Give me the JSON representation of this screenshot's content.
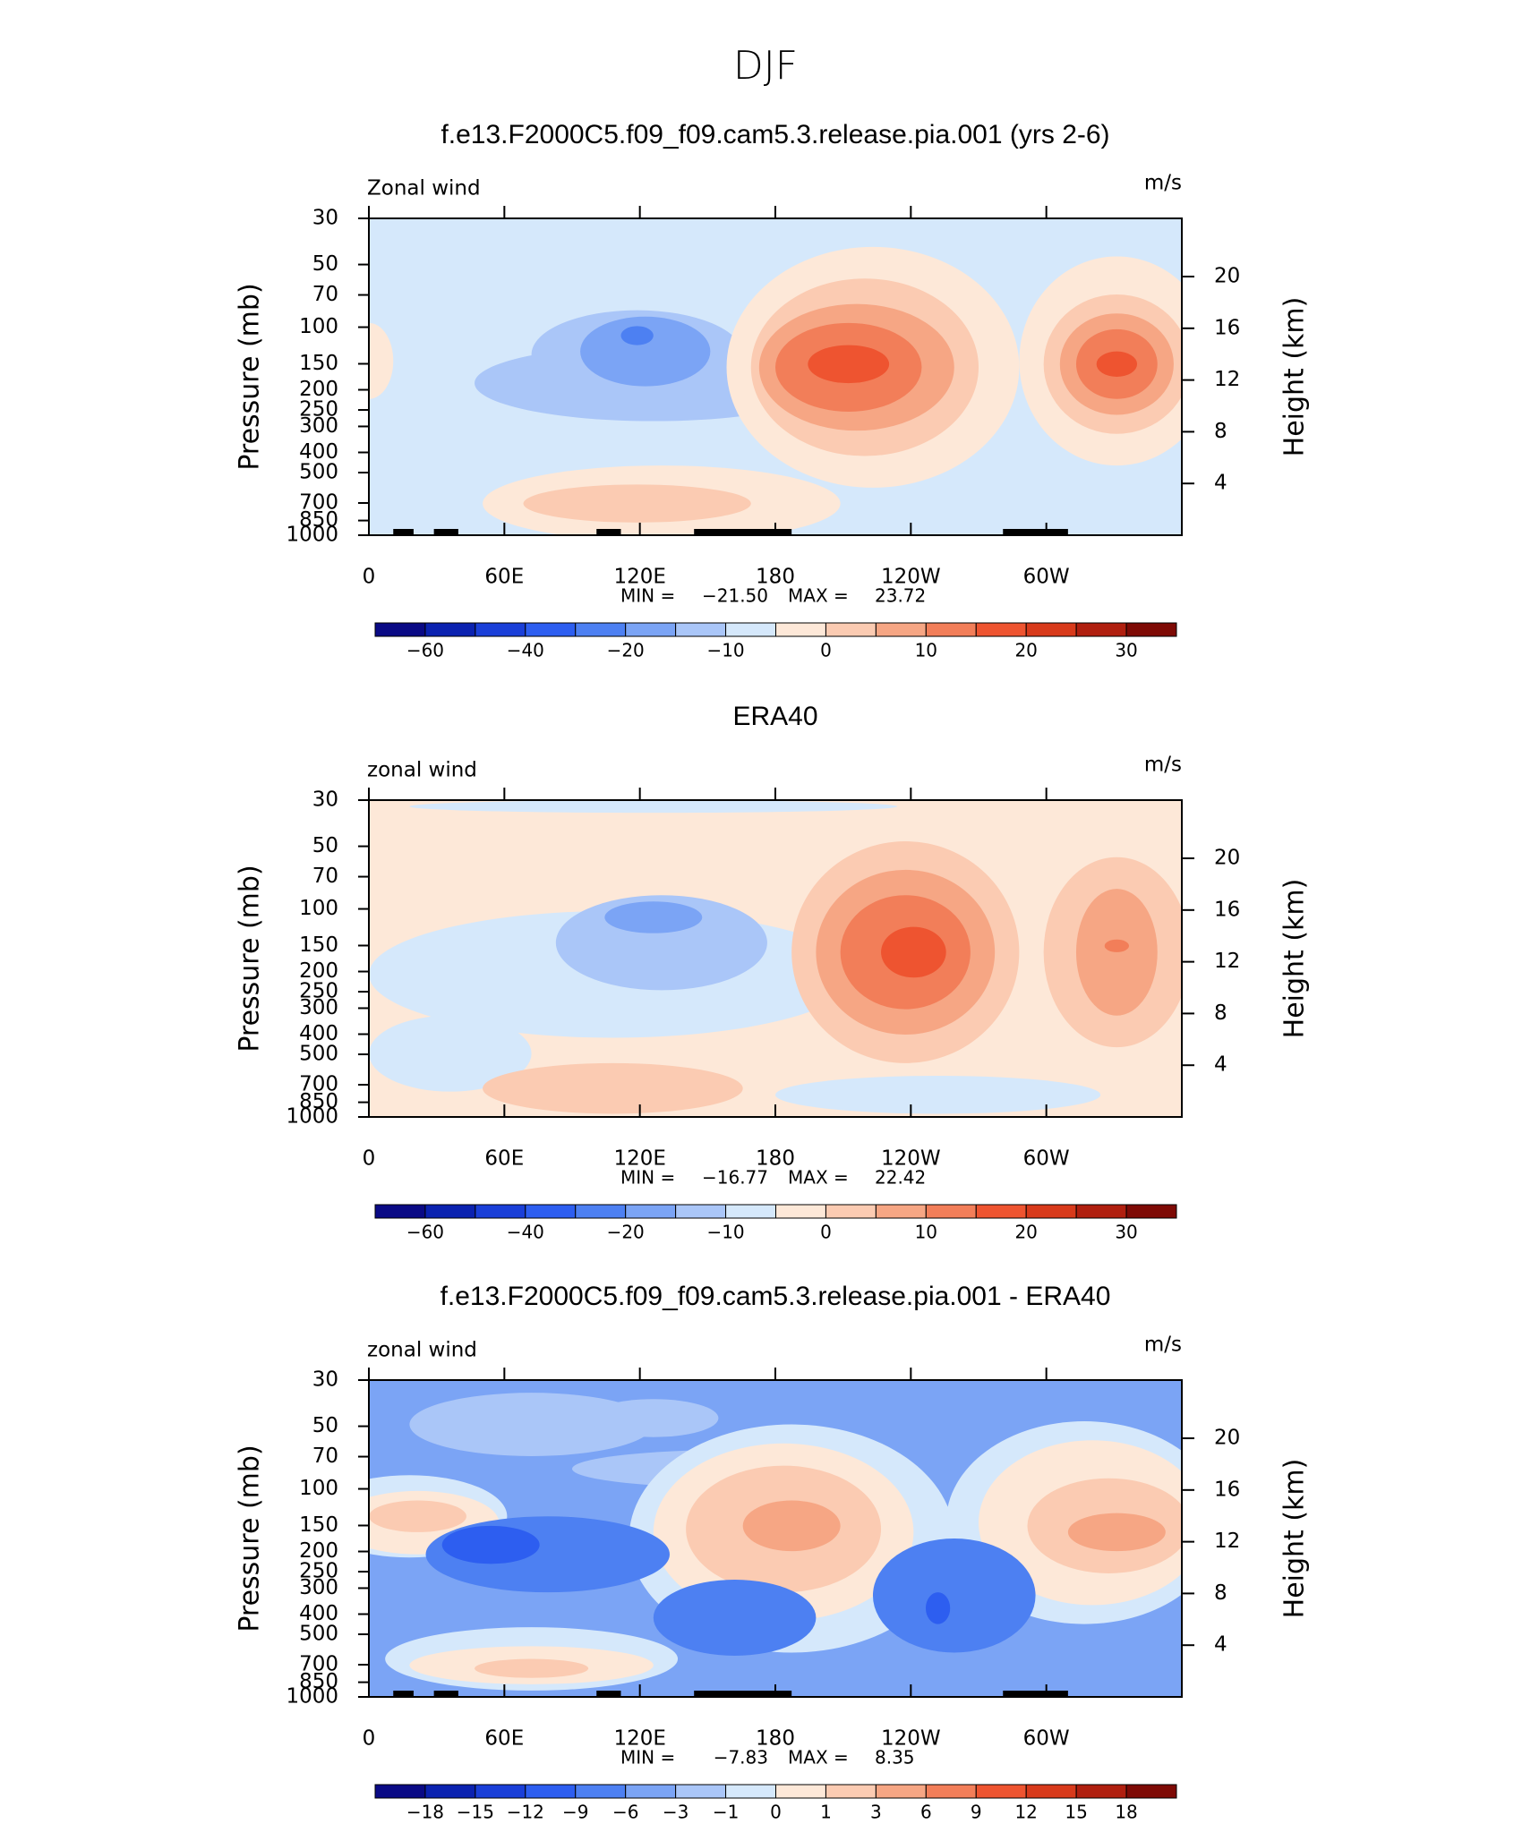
{
  "title": "DJF",
  "chart_data": [
    {
      "type": "contour",
      "title": "f.e13.F2000C5.f09_f09.cam5.3.release.pia.001 (yrs 2-6)",
      "label": "Zonal wind",
      "units": "m/s",
      "ylabel": "Pressure (mb)",
      "y2label": "Height (km)",
      "xlim": [
        0,
        360
      ],
      "xticks": [
        0,
        {
          "value": 60,
          "label": "60E"
        },
        {
          "value": 120,
          "label": "120E"
        },
        180,
        {
          "value": 240,
          "label": "120W"
        },
        {
          "value": 300,
          "label": "60W"
        }
      ],
      "ylim": [
        1000,
        30
      ],
      "yscale": "log",
      "yticks": [
        30,
        50,
        70,
        100,
        150,
        200,
        250,
        300,
        400,
        500,
        700,
        850,
        1000
      ],
      "y2lim": [
        0,
        24.5
      ],
      "y2ticks": [
        4,
        8,
        12,
        16,
        20
      ],
      "stats": {
        "min_label": "MIN =",
        "min": {
          "value": -21.5,
          "label": "−21.50"
        },
        "max_label": "MAX =",
        "max": 23.72
      },
      "colorbar": {
        "colors": [
          "#0a0a85",
          "#0b22b0",
          "#1a3fd8",
          "#2d5ef0",
          "#4d80f2",
          "#7ba4f5",
          "#aac6f8",
          "#d5e8fb",
          "#fde8d8",
          "#fbcbb2",
          "#f6a684",
          "#f27e59",
          "#ee5430",
          "#d83a1b",
          "#b01f0f",
          "#7e0a05"
        ],
        "levels": [
          {
            "value": -60,
            "label": "−60"
          },
          null,
          {
            "value": -40,
            "label": "−40"
          },
          null,
          {
            "value": -20,
            "label": "−20"
          },
          null,
          {
            "value": -10,
            "label": "−10"
          },
          null,
          0,
          null,
          10,
          null,
          20,
          null,
          30
        ]
      }
    },
    {
      "type": "contour",
      "title": "ERA40",
      "label": "zonal wind",
      "units": "m/s",
      "ylabel": "Pressure (mb)",
      "y2label": "Height (km)",
      "xlim": [
        0,
        360
      ],
      "xticks": [
        0,
        {
          "value": 60,
          "label": "60E"
        },
        {
          "value": 120,
          "label": "120E"
        },
        180,
        {
          "value": 240,
          "label": "120W"
        },
        {
          "value": 300,
          "label": "60W"
        }
      ],
      "ylim": [
        1000,
        30
      ],
      "yscale": "log",
      "yticks": [
        30,
        50,
        70,
        100,
        150,
        200,
        250,
        300,
        400,
        500,
        700,
        850,
        1000
      ],
      "y2lim": [
        0,
        24.5
      ],
      "y2ticks": [
        4,
        8,
        12,
        16,
        20
      ],
      "stats": {
        "min_label": "MIN =",
        "min": {
          "value": -16.77,
          "label": "−16.77"
        },
        "max_label": "MAX =",
        "max": 22.42
      },
      "colorbar": {
        "colors": [
          "#0a0a85",
          "#0b22b0",
          "#1a3fd8",
          "#2d5ef0",
          "#4d80f2",
          "#7ba4f5",
          "#aac6f8",
          "#d5e8fb",
          "#fde8d8",
          "#fbcbb2",
          "#f6a684",
          "#f27e59",
          "#ee5430",
          "#d83a1b",
          "#b01f0f",
          "#7e0a05"
        ],
        "levels": [
          {
            "value": -60,
            "label": "−60"
          },
          null,
          {
            "value": -40,
            "label": "−40"
          },
          null,
          {
            "value": -20,
            "label": "−20"
          },
          null,
          {
            "value": -10,
            "label": "−10"
          },
          null,
          0,
          null,
          10,
          null,
          20,
          null,
          30
        ]
      }
    },
    {
      "type": "contour",
      "title": "f.e13.F2000C5.f09_f09.cam5.3.release.pia.001 - ERA40",
      "label": "zonal wind",
      "units": "m/s",
      "ylabel": "Pressure (mb)",
      "y2label": "Height (km)",
      "xlim": [
        0,
        360
      ],
      "xticks": [
        0,
        {
          "value": 60,
          "label": "60E"
        },
        {
          "value": 120,
          "label": "120E"
        },
        180,
        {
          "value": 240,
          "label": "120W"
        },
        {
          "value": 300,
          "label": "60W"
        }
      ],
      "ylim": [
        1000,
        30
      ],
      "yscale": "log",
      "yticks": [
        30,
        50,
        70,
        100,
        150,
        200,
        250,
        300,
        400,
        500,
        700,
        850,
        1000
      ],
      "y2lim": [
        0,
        24.5
      ],
      "y2ticks": [
        4,
        8,
        12,
        16,
        20
      ],
      "stats": {
        "min_label": "MIN =",
        "min": {
          "value": -7.83,
          "label": "−7.83"
        },
        "max_label": "MAX =",
        "max": 8.35
      },
      "colorbar": {
        "colors": [
          "#0a0a85",
          "#0b22b0",
          "#1a3fd8",
          "#2d5ef0",
          "#4d80f2",
          "#7ba4f5",
          "#aac6f8",
          "#d5e8fb",
          "#fde8d8",
          "#fbcbb2",
          "#f6a684",
          "#f27e59",
          "#ee5430",
          "#d83a1b",
          "#b01f0f",
          "#7e0a05"
        ],
        "levels": [
          {
            "value": -18,
            "label": "−18"
          },
          {
            "value": -15,
            "label": "−15"
          },
          {
            "value": -12,
            "label": "−12"
          },
          {
            "value": -9,
            "label": "−9"
          },
          {
            "value": -6,
            "label": "−6"
          },
          {
            "value": -3,
            "label": "−3"
          },
          {
            "value": -1,
            "label": "−1"
          },
          0,
          1,
          3,
          6,
          9,
          12,
          15,
          18
        ]
      }
    }
  ]
}
